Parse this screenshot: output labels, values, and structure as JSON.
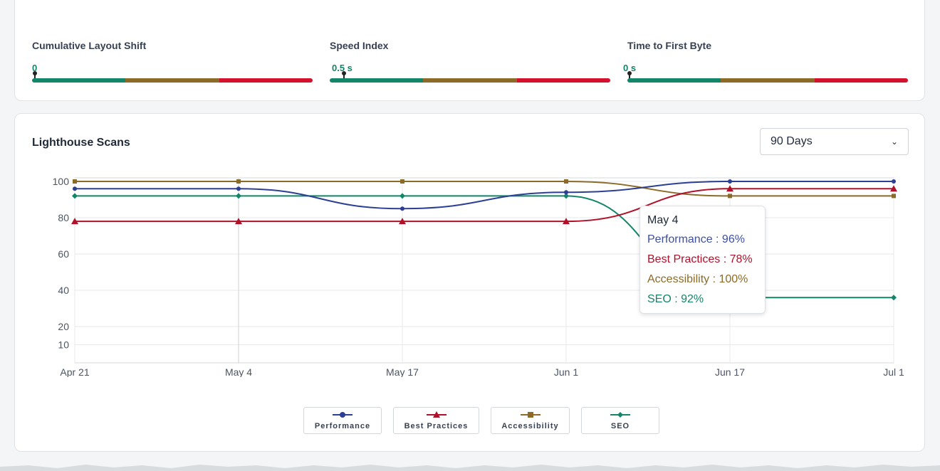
{
  "metrics": [
    {
      "title": "Cumulative Layout Shift",
      "value": "0",
      "marker": 0.0
    },
    {
      "title": "Speed Index",
      "value": "0.5 s",
      "marker": 0.05
    },
    {
      "title": "Time to First Byte",
      "value": "0 s",
      "marker": 0.0
    }
  ],
  "scans": {
    "title": "Lighthouse Scans",
    "range": "90 Days"
  },
  "tooltip": {
    "date": "May 4",
    "lines": [
      "Performance : 96%",
      "Best Practices : 78%",
      "Accessibility : 100%",
      "SEO : 92%"
    ]
  },
  "colors": {
    "performance": "#2c3f94",
    "best_practices": "#b0112a",
    "accessibility": "#8c6a28",
    "seo": "#13866a",
    "good": "#13866a",
    "average": "#8c6a28",
    "poor": "#d3122e"
  },
  "chart_data": {
    "type": "line",
    "x": [
      "Apr 21",
      "May 4",
      "May 17",
      "Jun 1",
      "Jun 17",
      "Jul 1"
    ],
    "yticks": [
      10,
      20,
      40,
      60,
      80,
      100
    ],
    "ylim": [
      0,
      100
    ],
    "series": [
      {
        "name": "Performance",
        "color": "#2c3f94",
        "marker": "circle",
        "values": [
          96,
          96,
          85,
          94,
          100,
          100
        ]
      },
      {
        "name": "Best Practices",
        "color": "#b0112a",
        "marker": "triangle",
        "values": [
          78,
          78,
          78,
          78,
          96,
          96
        ]
      },
      {
        "name": "Accessibility",
        "color": "#8c6a28",
        "marker": "square",
        "values": [
          100,
          100,
          100,
          100,
          92,
          92
        ]
      },
      {
        "name": "SEO",
        "color": "#13866a",
        "marker": "diamond",
        "values": [
          92,
          92,
          92,
          92,
          36,
          36
        ]
      }
    ],
    "grid": true,
    "legend": "bottom"
  }
}
